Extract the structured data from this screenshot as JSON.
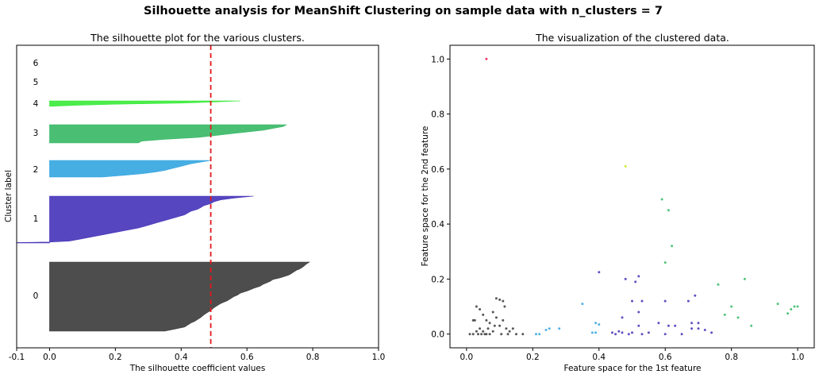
{
  "suptitle": "Silhouette analysis for MeanShift Clustering on sample data with n_clusters = 7",
  "chart_data": [
    {
      "type": "area",
      "title": "The silhouette plot for the various clusters.",
      "xlabel": "The silhouette coefficient values",
      "ylabel": "Cluster label",
      "xlim": [
        -0.1,
        1.0
      ],
      "xticks": [
        "-0.1",
        "0.0",
        "0.2",
        "0.4",
        "0.6",
        "0.8",
        "1.0"
      ],
      "xtick_values": [
        -0.1,
        0.0,
        0.2,
        0.4,
        0.6,
        0.8,
        1.0
      ],
      "yticks": "none",
      "grid": false,
      "average_silhouette": 0.49,
      "average_line_color": "#e31a1c",
      "clusters": [
        {
          "label": "0",
          "color": "#3a3a3a",
          "profile": [
            [
              0,
              0.79
            ],
            [
              0.03,
              0.78
            ],
            [
              0.07,
              0.77
            ],
            [
              0.1,
              0.76
            ],
            [
              0.12,
              0.75
            ],
            [
              0.15,
              0.74
            ],
            [
              0.18,
              0.73
            ],
            [
              0.2,
              0.72
            ],
            [
              0.23,
              0.7
            ],
            [
              0.25,
              0.68
            ],
            [
              0.28,
              0.67
            ],
            [
              0.3,
              0.66
            ],
            [
              0.32,
              0.65
            ],
            [
              0.35,
              0.64
            ],
            [
              0.38,
              0.62
            ],
            [
              0.4,
              0.61
            ],
            [
              0.42,
              0.6
            ],
            [
              0.45,
              0.58
            ],
            [
              0.48,
              0.57
            ],
            [
              0.5,
              0.56
            ],
            [
              0.53,
              0.55
            ],
            [
              0.56,
              0.54
            ],
            [
              0.6,
              0.52
            ],
            [
              0.63,
              0.51
            ],
            [
              0.66,
              0.5
            ],
            [
              0.7,
              0.49
            ],
            [
              0.73,
              0.48
            ],
            [
              0.76,
              0.47
            ],
            [
              0.8,
              0.46
            ],
            [
              0.83,
              0.45
            ],
            [
              0.86,
              0.44
            ],
            [
              0.88,
              0.43
            ],
            [
              0.91,
              0.42
            ],
            [
              0.94,
              0.41
            ],
            [
              0.97,
              0.38
            ],
            [
              1,
              0.35
            ]
          ]
        },
        {
          "label": "1",
          "color": "#4432b8",
          "profile": [
            [
              0,
              0.62
            ],
            [
              0.04,
              0.56
            ],
            [
              0.08,
              0.52
            ],
            [
              0.12,
              0.5
            ],
            [
              0.16,
              0.49
            ],
            [
              0.2,
              0.47
            ],
            [
              0.24,
              0.46
            ],
            [
              0.28,
              0.45
            ],
            [
              0.32,
              0.43
            ],
            [
              0.36,
              0.42
            ],
            [
              0.4,
              0.41
            ],
            [
              0.44,
              0.39
            ],
            [
              0.48,
              0.37
            ],
            [
              0.52,
              0.35
            ],
            [
              0.56,
              0.33
            ],
            [
              0.6,
              0.31
            ],
            [
              0.64,
              0.29
            ],
            [
              0.68,
              0.27
            ],
            [
              0.72,
              0.24
            ],
            [
              0.76,
              0.21
            ],
            [
              0.8,
              0.18
            ],
            [
              0.84,
              0.15
            ],
            [
              0.88,
              0.12
            ],
            [
              0.92,
              0.09
            ],
            [
              0.96,
              0.06
            ],
            [
              0.98,
              0
            ],
            [
              0.99,
              -0.1
            ],
            [
              1,
              -0.1
            ]
          ]
        },
        {
          "label": "2",
          "color": "#33a5e0",
          "profile": [
            [
              0,
              0.49
            ],
            [
              0.1,
              0.46
            ],
            [
              0.2,
              0.43
            ],
            [
              0.3,
              0.41
            ],
            [
              0.4,
              0.39
            ],
            [
              0.5,
              0.37
            ],
            [
              0.6,
              0.35
            ],
            [
              0.7,
              0.32
            ],
            [
              0.8,
              0.28
            ],
            [
              0.9,
              0.22
            ],
            [
              1,
              0.16
            ]
          ]
        },
        {
          "label": "3",
          "color": "#36b865",
          "profile": [
            [
              0,
              0.72
            ],
            [
              0.1,
              0.71
            ],
            [
              0.2,
              0.68
            ],
            [
              0.3,
              0.65
            ],
            [
              0.4,
              0.6
            ],
            [
              0.5,
              0.55
            ],
            [
              0.6,
              0.5
            ],
            [
              0.7,
              0.45
            ],
            [
              0.8,
              0.35
            ],
            [
              0.9,
              0.28
            ],
            [
              1,
              0.27
            ]
          ]
        },
        {
          "label": "4",
          "color": "#37ea37",
          "profile": [
            [
              0,
              0.58
            ],
            [
              0.2,
              0.5
            ],
            [
              0.4,
              0.4
            ],
            [
              0.6,
              0.2
            ],
            [
              0.8,
              0.08
            ],
            [
              1,
              0.0
            ]
          ]
        },
        {
          "label": "5",
          "color": "#c8e61c",
          "profile": []
        },
        {
          "label": "6",
          "color": "#e6194b",
          "profile": []
        }
      ]
    },
    {
      "type": "scatter",
      "title": "The visualization of the clustered data.",
      "xlabel": "Feature space for the 1st feature",
      "ylabel": "Feature space for the 2nd feature",
      "xlim": [
        -0.05,
        1.05
      ],
      "ylim": [
        -0.05,
        1.05
      ],
      "xticks": [
        "0.0",
        "0.2",
        "0.4",
        "0.6",
        "0.8",
        "1.0"
      ],
      "xtick_values": [
        0,
        0.2,
        0.4,
        0.6,
        0.8,
        1.0
      ],
      "yticks": [
        "0.0",
        "0.2",
        "0.4",
        "0.6",
        "0.8",
        "1.0"
      ],
      "ytick_values": [
        0,
        0.2,
        0.4,
        0.6,
        0.8,
        1.0
      ],
      "grid": false,
      "series": [
        {
          "cluster": "0",
          "color": "#3a3a3a",
          "points": [
            [
              0.01,
              0.0
            ],
            [
              0.02,
              0.05
            ],
            [
              0.025,
              0.05
            ],
            [
              0.03,
              0.1
            ],
            [
              0.04,
              0.09
            ],
            [
              0.05,
              0.07
            ],
            [
              0.06,
              0.05
            ],
            [
              0.07,
              0.04
            ],
            [
              0.08,
              0.08
            ],
            [
              0.09,
              0.06
            ],
            [
              0.09,
              0.13
            ],
            [
              0.1,
              0.125
            ],
            [
              0.11,
              0.12
            ],
            [
              0.115,
              0.1
            ],
            [
              0.12,
              0.02
            ],
            [
              0.13,
              0.01
            ],
            [
              0.14,
              0.02
            ],
            [
              0.15,
              0.0
            ],
            [
              0.03,
              0.01
            ],
            [
              0.04,
              0.02
            ],
            [
              0.05,
              0.01
            ],
            [
              0.06,
              0.0
            ],
            [
              0.065,
              0.02
            ],
            [
              0.08,
              0.01
            ],
            [
              0.085,
              0.03
            ],
            [
              0.1,
              0.03
            ],
            [
              0.105,
              0.0
            ],
            [
              0.11,
              0.05
            ],
            [
              0.125,
              0.0
            ],
            [
              0.17,
              0.0
            ],
            [
              0.035,
              0.0
            ],
            [
              0.045,
              0.0
            ],
            [
              0.055,
              0.0
            ],
            [
              0.02,
              0.0
            ],
            [
              0.07,
              0.0
            ]
          ]
        },
        {
          "cluster": "1",
          "color": "#4432b8",
          "points": [
            [
              0.4,
              0.225
            ],
            [
              0.48,
              0.2
            ],
            [
              0.5,
              0.12
            ],
            [
              0.51,
              0.19
            ],
            [
              0.52,
              0.21
            ],
            [
              0.53,
              0.12
            ],
            [
              0.47,
              0.06
            ],
            [
              0.52,
              0.08
            ],
            [
              0.45,
              0.0
            ],
            [
              0.46,
              0.01
            ],
            [
              0.47,
              0.005
            ],
            [
              0.49,
              0.0
            ],
            [
              0.5,
              0.005
            ],
            [
              0.52,
              0.03
            ],
            [
              0.53,
              0.0
            ],
            [
              0.55,
              0.005
            ],
            [
              0.58,
              0.04
            ],
            [
              0.6,
              0.0
            ],
            [
              0.61,
              0.03
            ],
            [
              0.63,
              0.03
            ],
            [
              0.65,
              0.0
            ],
            [
              0.67,
              0.12
            ],
            [
              0.69,
              0.14
            ],
            [
              0.68,
              0.04
            ],
            [
              0.7,
              0.04
            ],
            [
              0.68,
              0.02
            ],
            [
              0.7,
              0.02
            ],
            [
              0.72,
              0.015
            ],
            [
              0.74,
              0.005
            ],
            [
              0.6,
              0.12
            ],
            [
              0.44,
              0.005
            ]
          ]
        },
        {
          "cluster": "2",
          "color": "#33a5e0",
          "points": [
            [
              0.21,
              0.0
            ],
            [
              0.22,
              0.0
            ],
            [
              0.24,
              0.015
            ],
            [
              0.25,
              0.02
            ],
            [
              0.28,
              0.02
            ],
            [
              0.35,
              0.11
            ],
            [
              0.38,
              0.005
            ],
            [
              0.39,
              0.04
            ],
            [
              0.39,
              0.005
            ],
            [
              0.4,
              0.035
            ]
          ]
        },
        {
          "cluster": "3",
          "color": "#36b865",
          "points": [
            [
              0.59,
              0.49
            ],
            [
              0.6,
              0.26
            ],
            [
              0.61,
              0.45
            ],
            [
              0.62,
              0.32
            ],
            [
              0.76,
              0.18
            ],
            [
              0.78,
              0.07
            ],
            [
              0.8,
              0.1
            ],
            [
              0.82,
              0.06
            ],
            [
              0.84,
              0.2
            ],
            [
              0.86,
              0.03
            ],
            [
              0.94,
              0.11
            ],
            [
              0.97,
              0.075
            ],
            [
              0.98,
              0.09
            ],
            [
              0.99,
              0.1
            ],
            [
              1.0,
              0.1
            ]
          ]
        },
        {
          "cluster": "4",
          "color": "#37ea37",
          "points": []
        },
        {
          "cluster": "5",
          "color": "#c8e61c",
          "points": [
            [
              0.48,
              0.61
            ]
          ]
        },
        {
          "cluster": "6",
          "color": "#e6194b",
          "points": [
            [
              0.06,
              1.0
            ]
          ]
        }
      ]
    }
  ]
}
